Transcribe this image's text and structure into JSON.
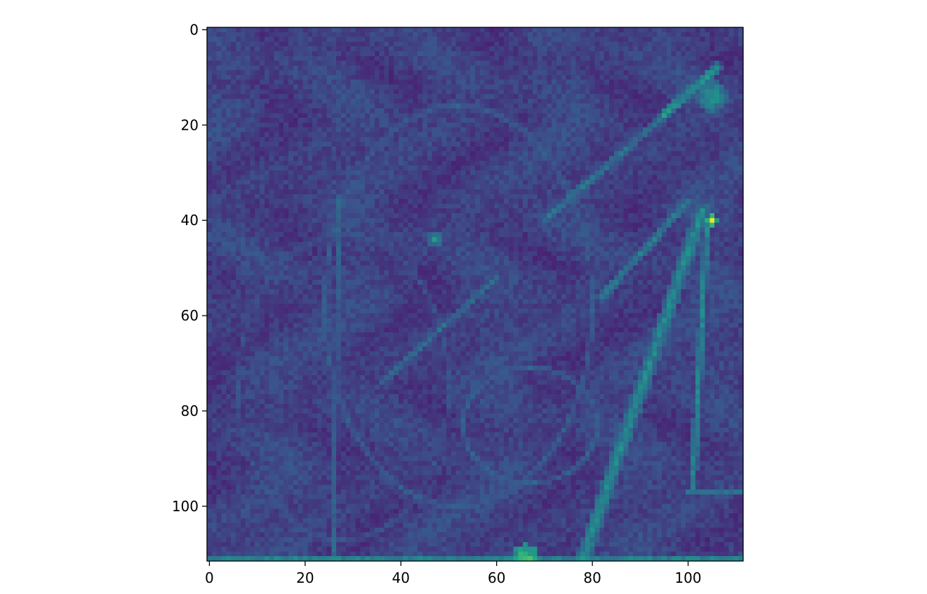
{
  "chart_data": {
    "type": "heatmap",
    "title": "",
    "xlabel": "",
    "ylabel": "",
    "grid": false,
    "colormap": "viridis",
    "image_size": [
      112,
      112
    ],
    "xlim": [
      -0.5,
      111.5
    ],
    "ylim": [
      111.5,
      -0.5
    ],
    "x_ticks": [
      0,
      20,
      40,
      60,
      80,
      100
    ],
    "y_ticks": [
      0,
      20,
      40,
      60,
      80,
      100
    ],
    "x_tick_labels": [
      "0",
      "20",
      "40",
      "60",
      "80",
      "100"
    ],
    "y_tick_labels": [
      "0",
      "20",
      "40",
      "60",
      "80",
      "100"
    ],
    "value_range": [
      0,
      1
    ],
    "background_level": 0.12,
    "features": [
      {
        "kind": "line",
        "from": [
          78,
          111
        ],
        "to": [
          103,
          38
        ],
        "intensity": 0.55,
        "width": 1.6
      },
      {
        "kind": "line",
        "from": [
          82,
          56
        ],
        "to": [
          100,
          36
        ],
        "intensity": 0.5,
        "width": 1.0
      },
      {
        "kind": "line",
        "from": [
          104,
          40
        ],
        "to": [
          101,
          96
        ],
        "intensity": 0.55,
        "width": 0.8
      },
      {
        "kind": "line",
        "from": [
          70,
          40
        ],
        "to": [
          95,
          18
        ],
        "intensity": 0.45,
        "width": 1.0
      },
      {
        "kind": "line",
        "from": [
          95,
          18
        ],
        "to": [
          106,
          8
        ],
        "intensity": 0.6,
        "width": 1.2
      },
      {
        "kind": "line",
        "from": [
          60,
          52
        ],
        "to": [
          36,
          74
        ],
        "intensity": 0.42,
        "width": 0.8
      },
      {
        "kind": "line",
        "from": [
          27,
          35
        ],
        "to": [
          26,
          111
        ],
        "intensity": 0.38,
        "width": 0.7
      },
      {
        "kind": "line",
        "from": [
          100,
          97
        ],
        "to": [
          111,
          97
        ],
        "intensity": 0.45,
        "width": 0.6
      },
      {
        "kind": "ellipse",
        "center": [
          52,
          58
        ],
        "radii": [
          28,
          42
        ],
        "intensity": 0.34,
        "width": 0.7
      },
      {
        "kind": "ellipse",
        "center": [
          28,
          75
        ],
        "radii": [
          22,
          32
        ],
        "intensity": 0.3,
        "width": 0.7
      },
      {
        "kind": "ellipse",
        "center": [
          67,
          83
        ],
        "radii": [
          14,
          12
        ],
        "intensity": 0.36,
        "width": 0.7
      },
      {
        "kind": "blob",
        "center": [
          105,
          40
        ],
        "radius": 1.2,
        "intensity": 1.0
      },
      {
        "kind": "blob",
        "center": [
          105,
          14
        ],
        "radius": 3.5,
        "intensity": 0.6
      },
      {
        "kind": "blob",
        "center": [
          47,
          44
        ],
        "radius": 1.8,
        "intensity": 0.55
      },
      {
        "kind": "blob",
        "center": [
          66,
          111
        ],
        "radius": 3.0,
        "intensity": 0.85
      },
      {
        "kind": "row",
        "y": 111,
        "intensity": 0.5
      }
    ]
  }
}
